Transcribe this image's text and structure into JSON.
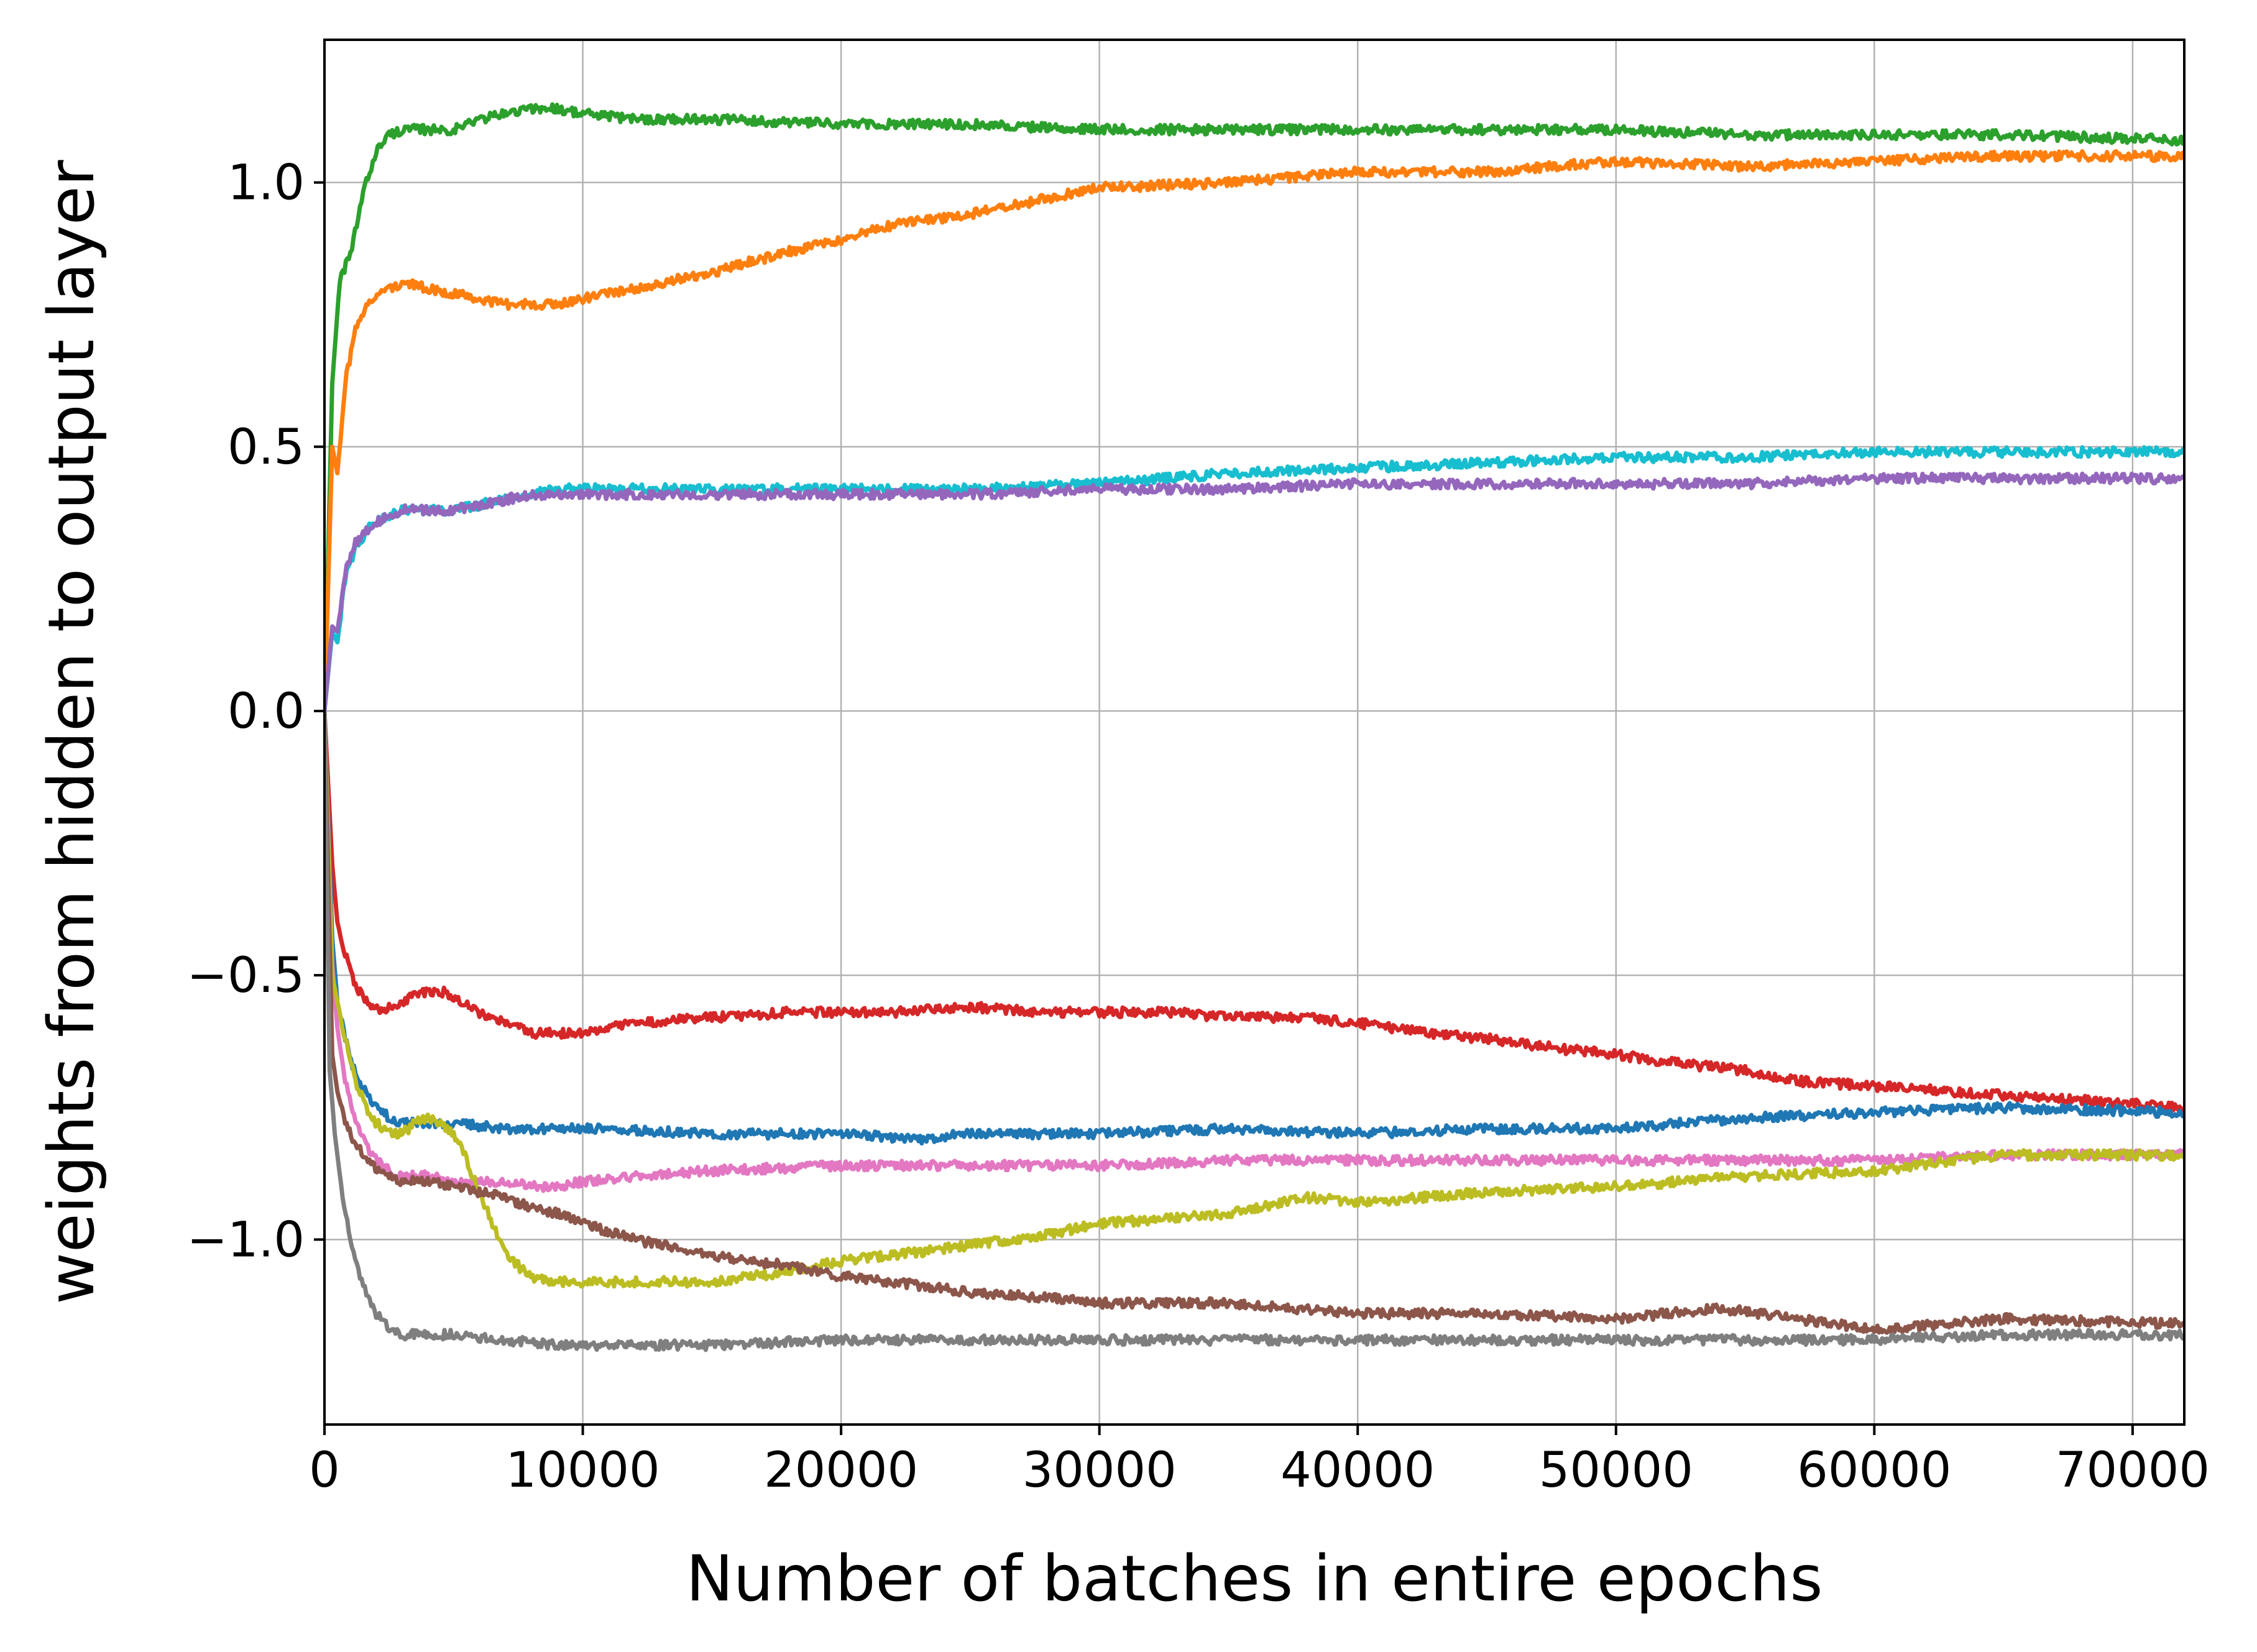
{
  "chart_data": {
    "type": "line",
    "title": "",
    "xlabel": "Number of batches in entire epochs",
    "ylabel": "weights from hidden to output layer",
    "xlim": [
      0,
      72000
    ],
    "ylim": [
      -1.35,
      1.27
    ],
    "x_ticks": [
      0,
      10000,
      20000,
      30000,
      40000,
      50000,
      60000,
      70000
    ],
    "x_tick_labels": [
      "0",
      "10000",
      "20000",
      "30000",
      "40000",
      "50000",
      "60000",
      "70000"
    ],
    "y_ticks": [
      -1.0,
      -0.5,
      0.0,
      0.5,
      1.0
    ],
    "y_tick_labels": [
      "−1.0",
      "−0.5",
      "0.0",
      "0.5",
      "1.0"
    ],
    "grid": true,
    "legend": "none",
    "series": [
      {
        "color": "#2ca02c",
        "x": [
          0,
          300,
          600,
          1000,
          1500,
          2000,
          2500,
          3000,
          4000,
          5000,
          6000,
          7000,
          8000,
          9000,
          10000,
          12000,
          15000,
          20000,
          25000,
          30000,
          35000,
          40000,
          45000,
          50000,
          55000,
          60000,
          65000,
          72000
        ],
        "y": [
          0.0,
          0.62,
          0.82,
          0.86,
          0.98,
          1.06,
          1.09,
          1.1,
          1.1,
          1.1,
          1.12,
          1.13,
          1.14,
          1.14,
          1.13,
          1.12,
          1.12,
          1.11,
          1.11,
          1.1,
          1.1,
          1.1,
          1.1,
          1.1,
          1.09,
          1.09,
          1.09,
          1.08
        ]
      },
      {
        "color": "#ff7f0e",
        "x": [
          0,
          300,
          500,
          800,
          1200,
          1800,
          2500,
          3000,
          4000,
          5000,
          6000,
          7000,
          8000,
          9000,
          10000,
          12000,
          15000,
          18000,
          20000,
          22000,
          25000,
          28000,
          30000,
          35000,
          40000,
          45000,
          50000,
          55000,
          60000,
          65000,
          72000
        ],
        "y": [
          0.0,
          0.5,
          0.45,
          0.62,
          0.72,
          0.78,
          0.8,
          0.81,
          0.8,
          0.79,
          0.78,
          0.77,
          0.77,
          0.77,
          0.78,
          0.8,
          0.83,
          0.87,
          0.89,
          0.92,
          0.94,
          0.97,
          0.99,
          1.0,
          1.02,
          1.02,
          1.04,
          1.03,
          1.04,
          1.05,
          1.05
        ]
      },
      {
        "color": "#17becf",
        "x": [
          0,
          300,
          500,
          800,
          1200,
          1800,
          2500,
          3000,
          4000,
          5000,
          6000,
          7000,
          8000,
          9000,
          10000,
          15000,
          20000,
          25000,
          30000,
          35000,
          40000,
          45000,
          50000,
          55000,
          60000,
          65000,
          72000
        ],
        "y": [
          0.0,
          0.15,
          0.13,
          0.25,
          0.31,
          0.35,
          0.37,
          0.38,
          0.38,
          0.38,
          0.39,
          0.4,
          0.41,
          0.42,
          0.42,
          0.42,
          0.42,
          0.42,
          0.43,
          0.45,
          0.46,
          0.47,
          0.48,
          0.48,
          0.49,
          0.49,
          0.49
        ]
      },
      {
        "color": "#9467bd",
        "x": [
          0,
          300,
          500,
          800,
          1200,
          1800,
          2500,
          3000,
          4000,
          5000,
          6000,
          7000,
          8000,
          9000,
          10000,
          15000,
          20000,
          25000,
          30000,
          35000,
          40000,
          45000,
          50000,
          55000,
          60000,
          65000,
          72000
        ],
        "y": [
          0.0,
          0.16,
          0.15,
          0.26,
          0.32,
          0.35,
          0.37,
          0.38,
          0.38,
          0.38,
          0.39,
          0.4,
          0.41,
          0.41,
          0.41,
          0.41,
          0.41,
          0.41,
          0.42,
          0.42,
          0.43,
          0.43,
          0.43,
          0.43,
          0.44,
          0.44,
          0.44
        ]
      },
      {
        "color": "#d62728",
        "x": [
          0,
          300,
          500,
          800,
          1200,
          1800,
          2200,
          2500,
          3000,
          3500,
          4000,
          4500,
          5000,
          6000,
          7000,
          8000,
          9000,
          10000,
          12000,
          15000,
          18000,
          20000,
          22000,
          25000,
          28000,
          30000,
          33000,
          35000,
          38000,
          40000,
          43000,
          45000,
          48000,
          50000,
          53000,
          55000,
          57000,
          60000,
          63000,
          66000,
          69000,
          72000
        ],
        "y": [
          0.0,
          -0.29,
          -0.4,
          -0.46,
          -0.52,
          -0.56,
          -0.57,
          -0.56,
          -0.55,
          -0.54,
          -0.53,
          -0.53,
          -0.54,
          -0.57,
          -0.59,
          -0.61,
          -0.61,
          -0.61,
          -0.59,
          -0.58,
          -0.57,
          -0.57,
          -0.57,
          -0.56,
          -0.57,
          -0.57,
          -0.57,
          -0.58,
          -0.58,
          -0.59,
          -0.61,
          -0.62,
          -0.64,
          -0.65,
          -0.67,
          -0.68,
          -0.7,
          -0.71,
          -0.72,
          -0.73,
          -0.74,
          -0.75
        ]
      },
      {
        "color": "#1f77b4",
        "x": [
          0,
          300,
          500,
          800,
          1200,
          1800,
          2500,
          3000,
          4000,
          5000,
          7000,
          10000,
          15000,
          20000,
          23000,
          25000,
          30000,
          35000,
          40000,
          45000,
          50000,
          55000,
          60000,
          65000,
          72000
        ],
        "y": [
          0.0,
          -0.43,
          -0.55,
          -0.62,
          -0.69,
          -0.74,
          -0.77,
          -0.78,
          -0.78,
          -0.78,
          -0.79,
          -0.79,
          -0.8,
          -0.8,
          -0.81,
          -0.8,
          -0.8,
          -0.79,
          -0.8,
          -0.79,
          -0.79,
          -0.77,
          -0.76,
          -0.75,
          -0.76
        ]
      },
      {
        "color": "#e377c2",
        "x": [
          0,
          300,
          500,
          800,
          1200,
          1800,
          2500,
          3000,
          4000,
          5000,
          6000,
          7000,
          8000,
          9000,
          10000,
          12000,
          15000,
          20000,
          25000,
          30000,
          35000,
          40000,
          45000,
          50000,
          55000,
          60000,
          65000,
          72000
        ],
        "y": [
          0.0,
          -0.48,
          -0.6,
          -0.7,
          -0.78,
          -0.84,
          -0.87,
          -0.88,
          -0.88,
          -0.89,
          -0.89,
          -0.89,
          -0.9,
          -0.9,
          -0.89,
          -0.88,
          -0.87,
          -0.86,
          -0.86,
          -0.86,
          -0.85,
          -0.85,
          -0.85,
          -0.85,
          -0.85,
          -0.85,
          -0.84,
          -0.84
        ]
      },
      {
        "color": "#bcbd22",
        "x": [
          0,
          300,
          500,
          800,
          1200,
          1800,
          2500,
          3000,
          3500,
          4000,
          4500,
          5000,
          5500,
          6000,
          6500,
          7000,
          7500,
          8000,
          9000,
          10000,
          12000,
          15000,
          18000,
          20000,
          22000,
          25000,
          28000,
          30000,
          35000,
          38000,
          40000,
          45000,
          50000,
          55000,
          60000,
          65000,
          72000
        ],
        "y": [
          0.0,
          -0.5,
          -0.55,
          -0.62,
          -0.7,
          -0.77,
          -0.8,
          -0.8,
          -0.78,
          -0.77,
          -0.78,
          -0.8,
          -0.85,
          -0.91,
          -0.97,
          -1.02,
          -1.05,
          -1.07,
          -1.08,
          -1.08,
          -1.08,
          -1.08,
          -1.06,
          -1.04,
          -1.03,
          -1.01,
          -0.99,
          -0.97,
          -0.95,
          -0.92,
          -0.93,
          -0.91,
          -0.9,
          -0.88,
          -0.87,
          -0.84,
          -0.84
        ]
      },
      {
        "color": "#8c564b",
        "x": [
          0,
          300,
          500,
          800,
          1200,
          1800,
          2500,
          3000,
          4000,
          5000,
          6000,
          7000,
          8000,
          9000,
          10000,
          12000,
          15000,
          18000,
          20000,
          22000,
          25000,
          28000,
          30000,
          35000,
          40000,
          45000,
          50000,
          54000,
          57000,
          60000,
          65000,
          72000
        ],
        "y": [
          0.0,
          -0.65,
          -0.72,
          -0.78,
          -0.82,
          -0.86,
          -0.88,
          -0.89,
          -0.89,
          -0.9,
          -0.91,
          -0.92,
          -0.94,
          -0.95,
          -0.97,
          -1.0,
          -1.03,
          -1.05,
          -1.07,
          -1.08,
          -1.1,
          -1.11,
          -1.12,
          -1.12,
          -1.14,
          -1.14,
          -1.15,
          -1.13,
          -1.15,
          -1.17,
          -1.15,
          -1.16
        ]
      },
      {
        "color": "#7f7f7f",
        "x": [
          0,
          200,
          400,
          700,
          1000,
          1500,
          2000,
          2500,
          3000,
          4000,
          5000,
          7000,
          9000,
          10000,
          15000,
          20000,
          25000,
          30000,
          35000,
          40000,
          45000,
          50000,
          55000,
          60000,
          65000,
          72000
        ],
        "y": [
          0.0,
          -0.68,
          -0.8,
          -0.92,
          -1.0,
          -1.09,
          -1.14,
          -1.17,
          -1.18,
          -1.18,
          -1.18,
          -1.19,
          -1.2,
          -1.2,
          -1.2,
          -1.19,
          -1.19,
          -1.19,
          -1.19,
          -1.19,
          -1.19,
          -1.19,
          -1.19,
          -1.19,
          -1.18,
          -1.18
        ]
      }
    ]
  }
}
